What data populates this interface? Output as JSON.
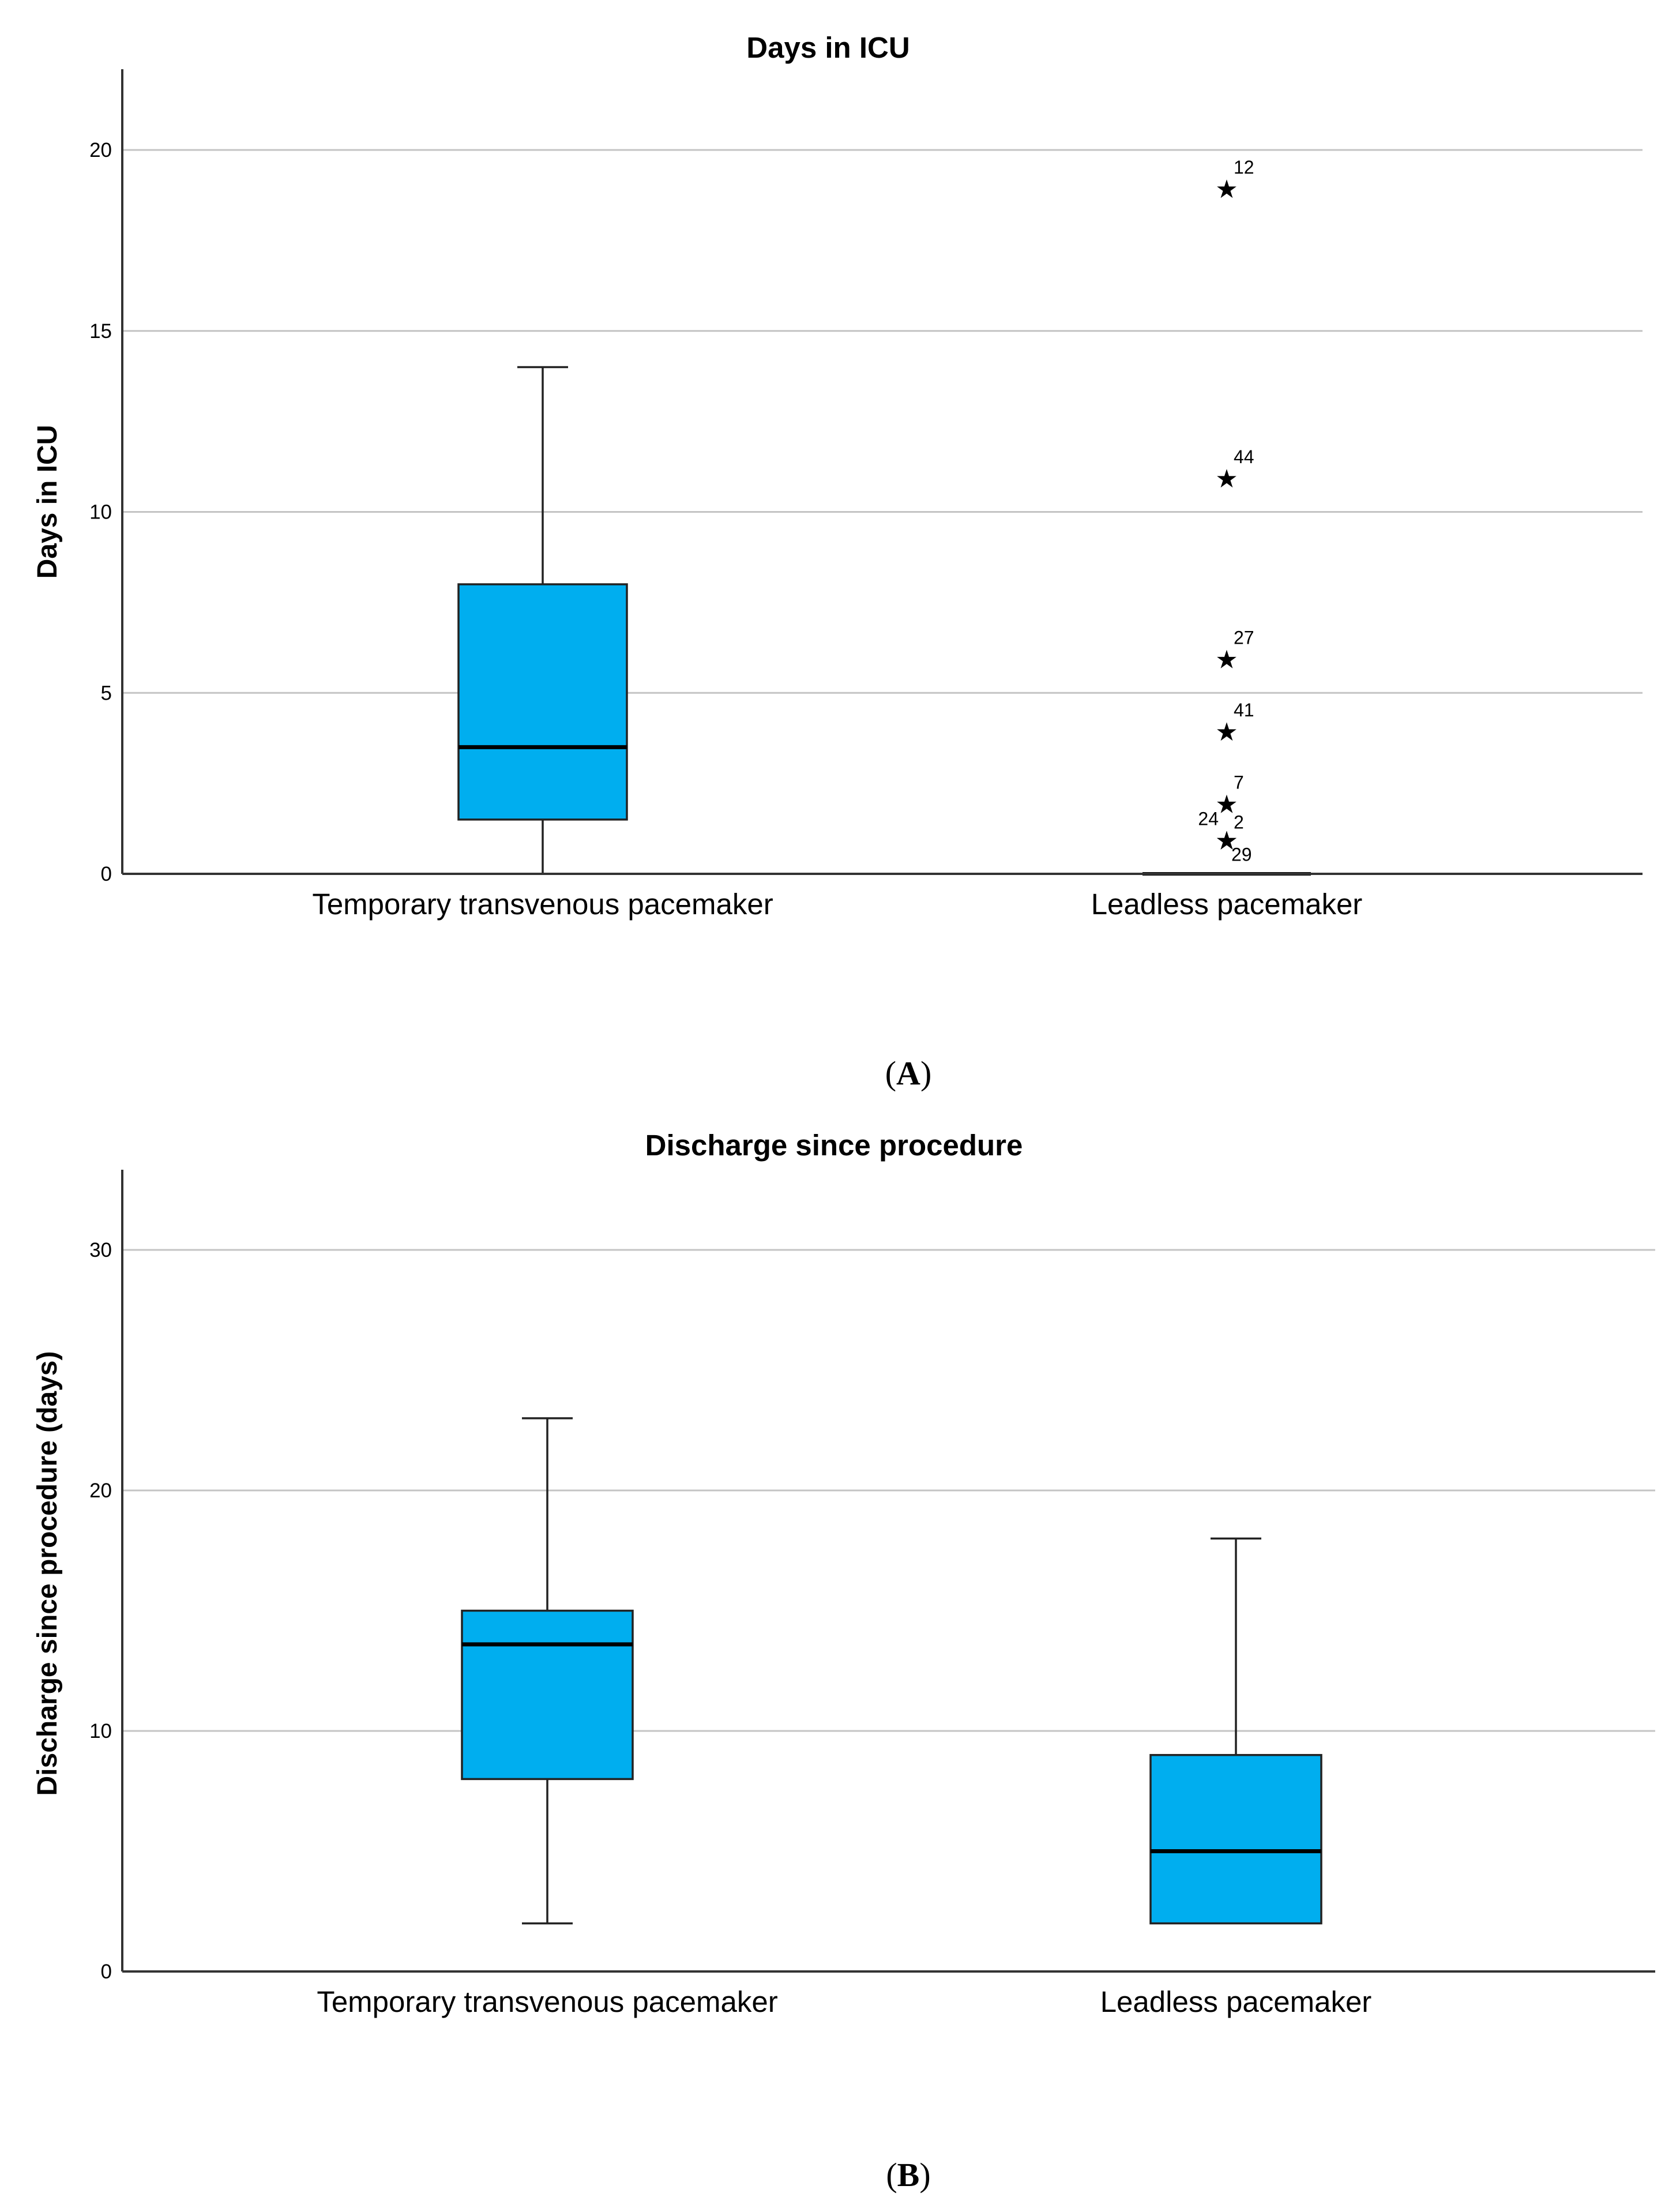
{
  "chart_data": [
    {
      "type": "boxplot",
      "panel_label": "A",
      "title": "Days in ICU",
      "ylabel": "Days in ICU",
      "xlabel": "",
      "ylim": [
        0,
        22
      ],
      "yticks": [
        0,
        5,
        10,
        15,
        20
      ],
      "grid": true,
      "box_color": "#00AEEF",
      "categories": [
        "Temporary transvenous pacemaker",
        "Leadless pacemaker"
      ],
      "groups": [
        {
          "name": "Temporary transvenous pacemaker",
          "min": 0,
          "q1": 1.5,
          "median": 3.5,
          "q3": 8,
          "max": 14,
          "outliers": []
        },
        {
          "name": "Leadless pacemaker",
          "min": 0,
          "q1": 0,
          "median": 0,
          "q3": 0,
          "max": 0,
          "outliers": [
            {
              "value": 19,
              "label": "12"
            },
            {
              "value": 11,
              "label": "44"
            },
            {
              "value": 6,
              "label": "27"
            },
            {
              "value": 4,
              "label": "41"
            },
            {
              "value": 2,
              "label": "7"
            },
            {
              "value": 1,
              "label": "24"
            },
            {
              "value": 1,
              "label": "2"
            },
            {
              "value": 1,
              "label": "29"
            }
          ]
        }
      ]
    },
    {
      "type": "boxplot",
      "panel_label": "B",
      "title": "Discharge since procedure",
      "ylabel": "Discharge since procedure (days)",
      "xlabel": "",
      "ylim": [
        0,
        33
      ],
      "yticks": [
        0,
        10,
        20,
        30
      ],
      "grid": true,
      "box_color": "#00AEEF",
      "categories": [
        "Temporary transvenous pacemaker",
        "Leadless pacemaker"
      ],
      "groups": [
        {
          "name": "Temporary transvenous pacemaker",
          "min": 2,
          "q1": 8,
          "median": 13.6,
          "q3": 15,
          "max": 23,
          "outliers": []
        },
        {
          "name": "Leadless pacemaker",
          "min": 2,
          "q1": 2,
          "median": 5,
          "q3": 9,
          "max": 18,
          "outliers": []
        }
      ]
    }
  ]
}
